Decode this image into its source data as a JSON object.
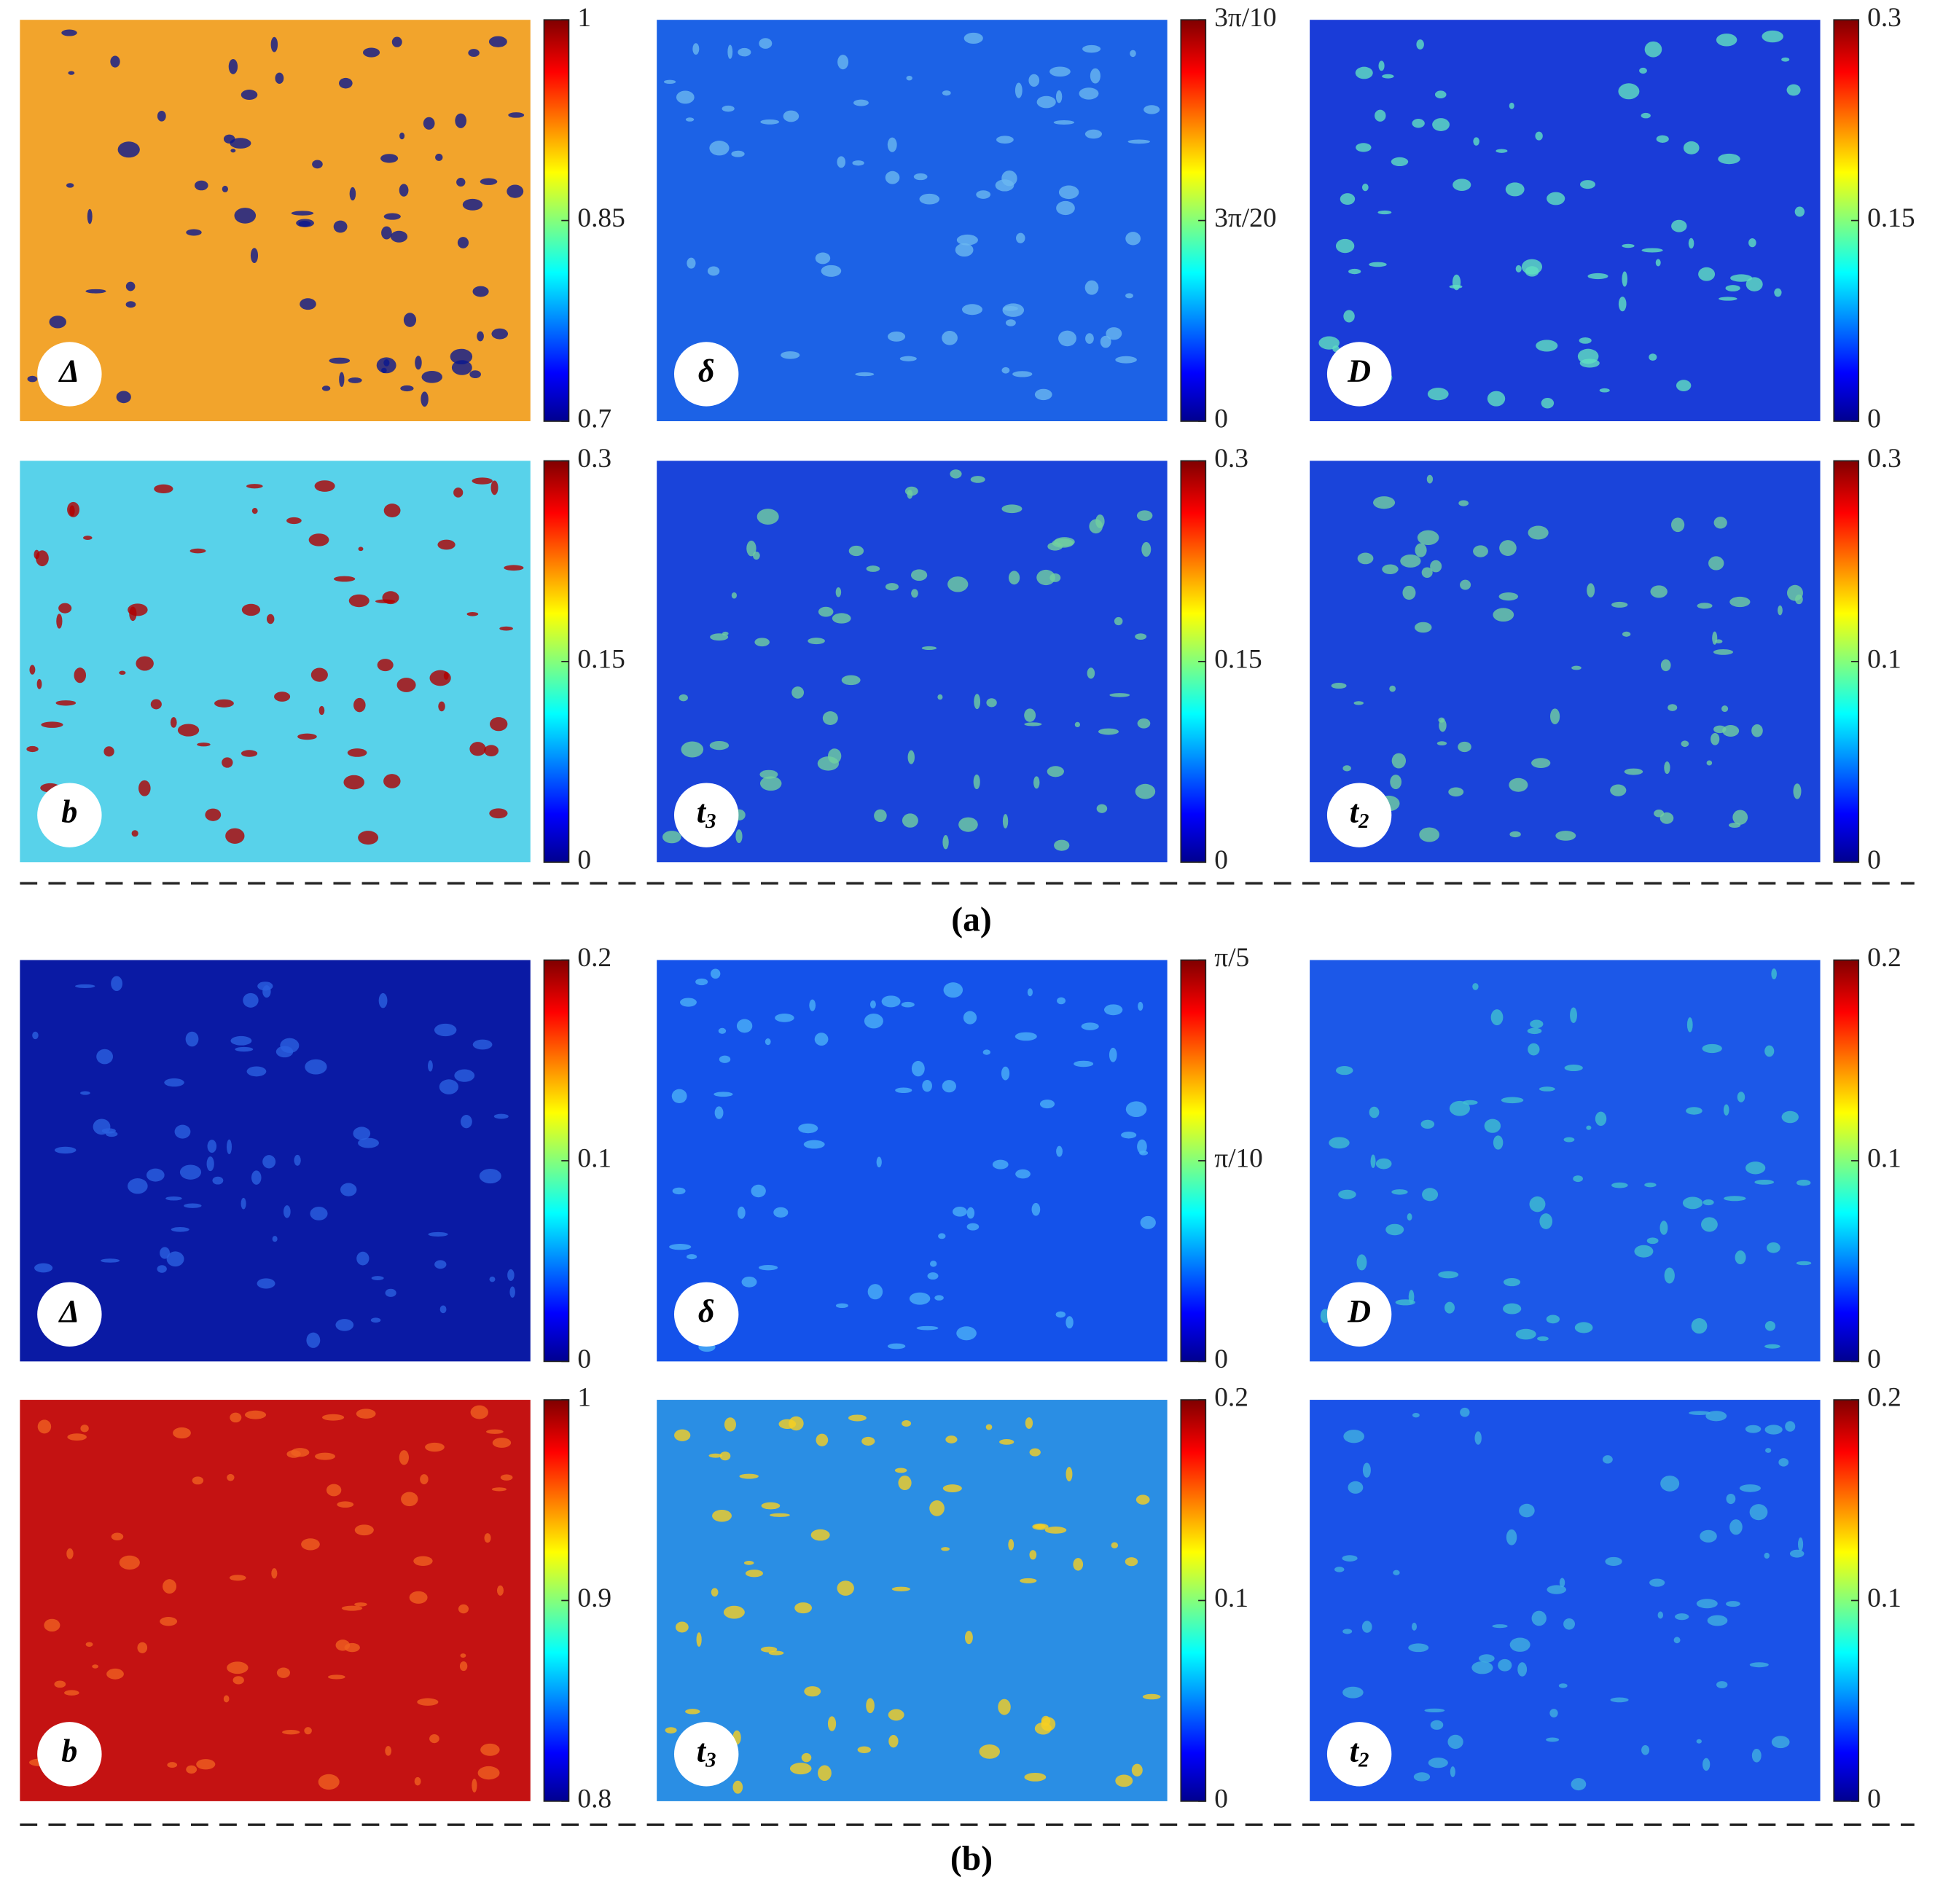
{
  "sections": [
    {
      "label": "(a)",
      "panels": [
        {
          "symbol": "Δ",
          "ticks": [
            1,
            0.85,
            0.7
          ]
        },
        {
          "symbol": "δ",
          "ticks": [
            "3π/10",
            "3π/20",
            0
          ]
        },
        {
          "symbol": "D",
          "ticks": [
            0.3,
            0.15,
            0
          ]
        },
        {
          "symbol": "b",
          "ticks": [
            0.3,
            0.15,
            0
          ]
        },
        {
          "symbol": "t",
          "subscript": "3",
          "ticks": [
            0.3,
            0.15,
            0
          ]
        },
        {
          "symbol": "t",
          "subscript": "2",
          "ticks": [
            0.3,
            0.1,
            0
          ]
        }
      ]
    },
    {
      "label": "(b)",
      "panels": [
        {
          "symbol": "Δ",
          "ticks": [
            0.2,
            0.1,
            0
          ]
        },
        {
          "symbol": "δ",
          "ticks": [
            "π/5",
            "π/10",
            0
          ]
        },
        {
          "symbol": "D",
          "ticks": [
            0.2,
            0.1,
            0
          ]
        },
        {
          "symbol": "b",
          "ticks": [
            1,
            0.9,
            0.8
          ]
        },
        {
          "symbol": "t",
          "subscript": "3",
          "ticks": [
            0.2,
            0.1,
            0
          ]
        },
        {
          "symbol": "t",
          "subscript": "2",
          "ticks": [
            0.2,
            0.1,
            0
          ]
        }
      ]
    }
  ]
}
